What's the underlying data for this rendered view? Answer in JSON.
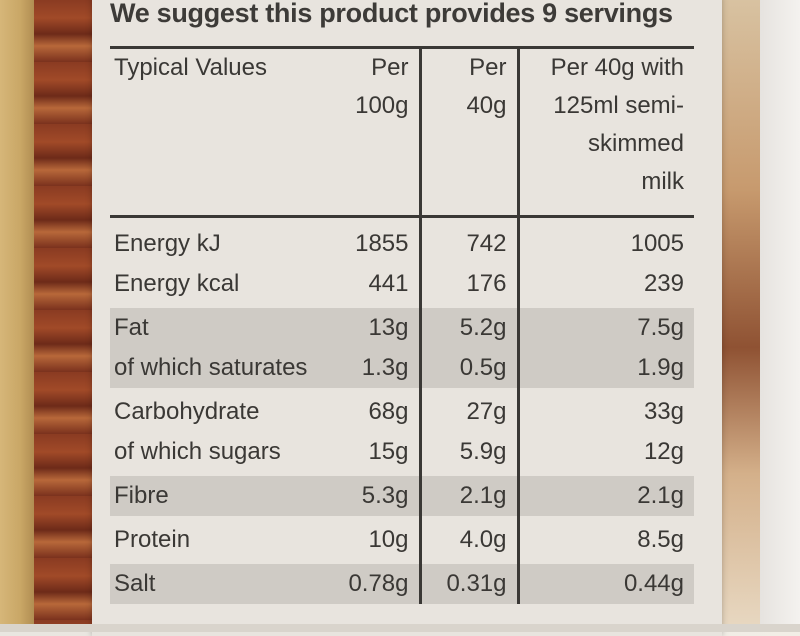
{
  "title": "We suggest this product provides 9 servings",
  "headers": {
    "label": "Typical Values",
    "per100_line1": "Per",
    "per100_line2": "100g",
    "per40_line1": "Per",
    "per40_line2": "40g",
    "milk_line1": "Per 40g with",
    "milk_line2": "125ml semi-",
    "milk_line3": "skimmed",
    "milk_line4": "milk"
  },
  "rows": [
    {
      "label": "Energy kJ",
      "per100": "1855",
      "per40": "742",
      "milk": "1005"
    },
    {
      "label": "Energy kcal",
      "per100": "441",
      "per40": "176",
      "milk": "239"
    },
    {
      "label": "Fat",
      "per100": "13g",
      "per40": "5.2g",
      "milk": "7.5g"
    },
    {
      "label": "of which saturates",
      "per100": "1.3g",
      "per40": "0.5g",
      "milk": "1.9g"
    },
    {
      "label": "Carbohydrate",
      "per100": "68g",
      "per40": "27g",
      "milk": "33g"
    },
    {
      "label": "of which sugars",
      "per100": "15g",
      "per40": "5.9g",
      "milk": "12g"
    },
    {
      "label": "Fibre",
      "per100": "5.3g",
      "per40": "2.1g",
      "milk": "2.1g"
    },
    {
      "label": "Protein",
      "per100": "10g",
      "per40": "4.0g",
      "milk": "8.5g"
    },
    {
      "label": "Salt",
      "per100": "0.78g",
      "per40": "0.31g",
      "milk": "0.44g"
    }
  ],
  "colors": {
    "label_bg": "#e8e4de",
    "shade": "#cfcbc5",
    "text": "#3a3835"
  }
}
